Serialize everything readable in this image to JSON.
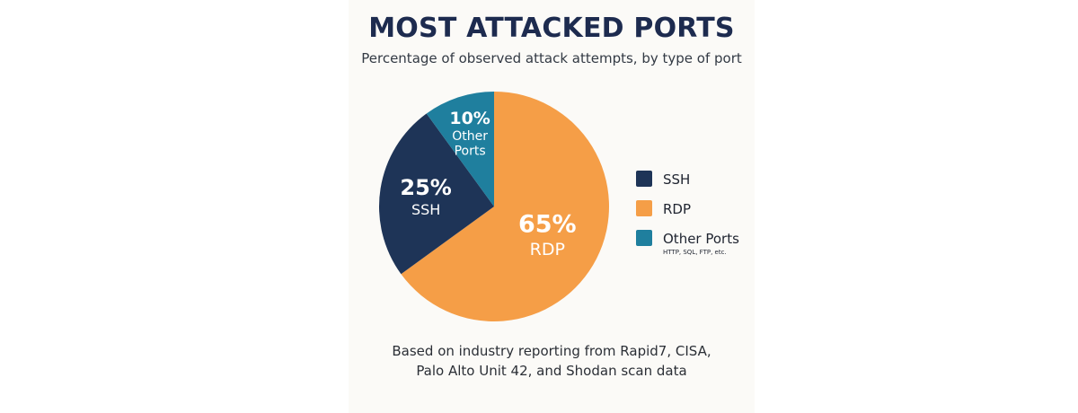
{
  "colors": {
    "background": "#fbfaf7",
    "title": "#1d2b4f",
    "ssh": "#1e3457",
    "rdp": "#f59e47",
    "other": "#1f7f9e"
  },
  "header": {
    "title": "MOST ATTACKED PORTS",
    "subtitle": "Percentage of observed attack attempts, by type of port"
  },
  "chart_data": {
    "type": "pie",
    "title": "MOST ATTACKED PORTS",
    "subtitle": "Percentage of observed attack attempts, by type of port",
    "slices": [
      {
        "name": "RDP",
        "value": 65,
        "label_pct": "65%",
        "label_name": [
          "RDP"
        ],
        "color": "#f59e47"
      },
      {
        "name": "SSH",
        "value": 25,
        "label_pct": "25%",
        "label_name": [
          "SSH"
        ],
        "color": "#1e3457"
      },
      {
        "name": "Other Ports",
        "value": 10,
        "label_pct": "10%",
        "label_name": [
          "Other",
          "Ports"
        ],
        "color": "#1f7f9e"
      }
    ],
    "legend": [
      {
        "name": "SSH",
        "sub": "",
        "color": "#1e3457"
      },
      {
        "name": "RDP",
        "sub": "",
        "color": "#f59e47"
      },
      {
        "name": "Other Ports",
        "sub": "HTTP, SQL, FTP, etc.",
        "color": "#1f7f9e"
      }
    ],
    "legend_position": "right"
  },
  "footer": {
    "source_line1": "Based on industry reporting from Rapid7, CISA,",
    "source_line2": "Palo Alto Unit 42, and Shodan scan data"
  }
}
